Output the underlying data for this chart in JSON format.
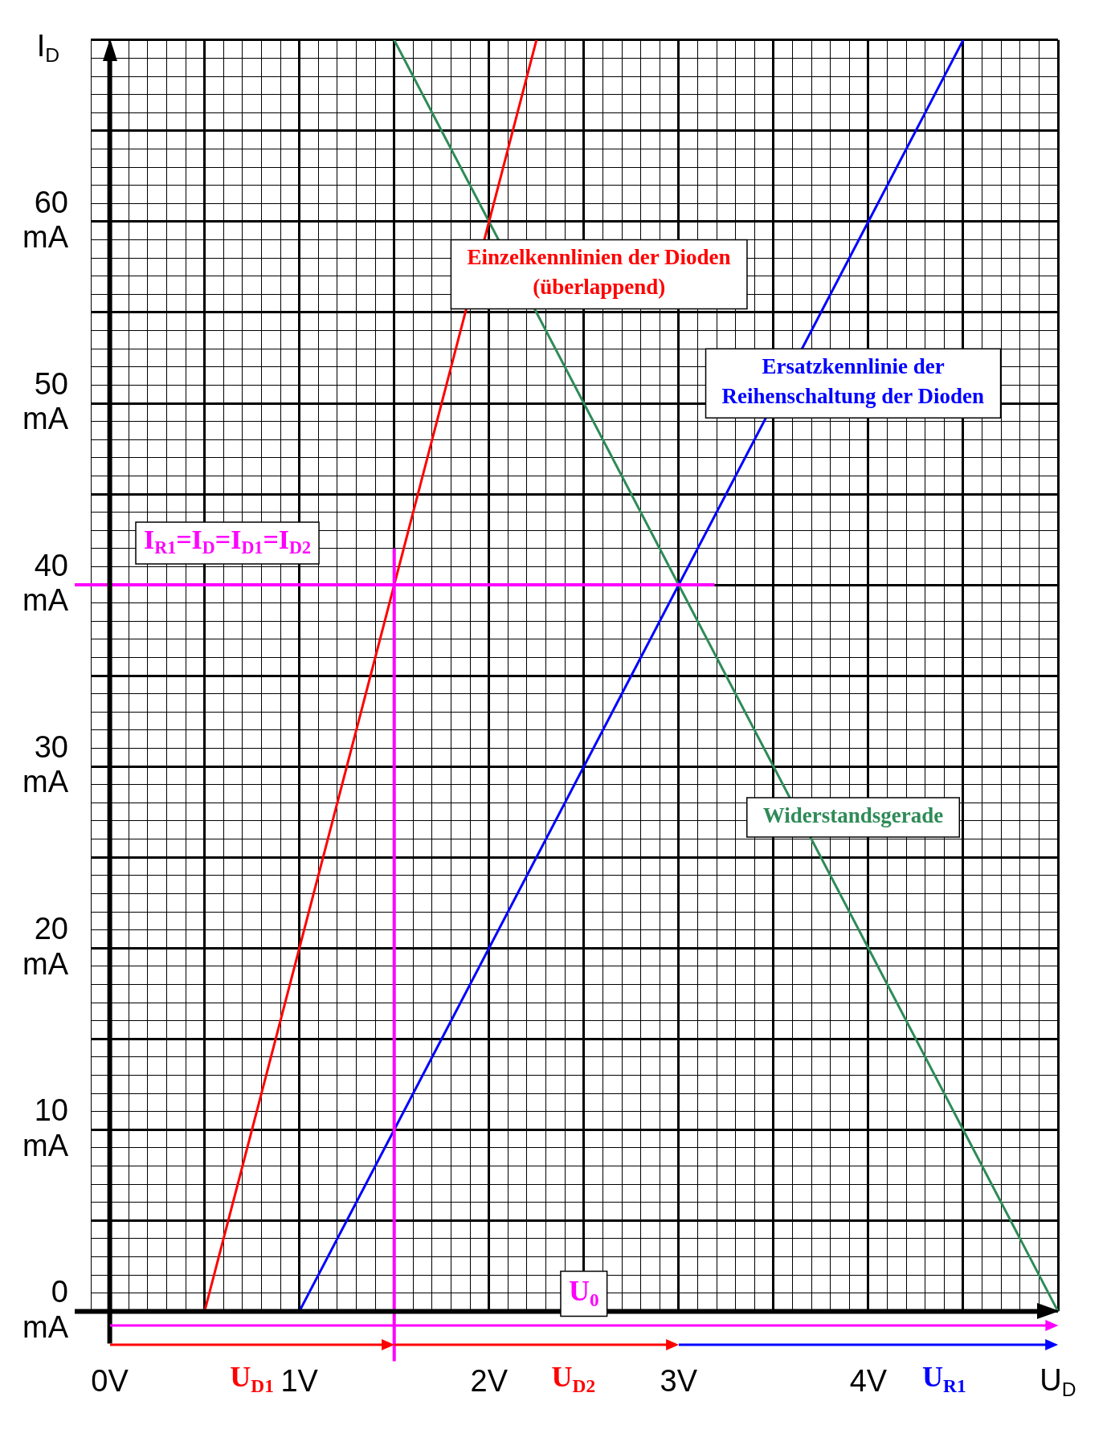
{
  "chart_data": {
    "type": "line",
    "xlabel": "U$_{D}$",
    "ylabel": "I$_{D}$",
    "xlim": [
      -0.1,
      5
    ],
    "ylim": [
      0,
      70
    ],
    "xticks": [
      {
        "value": -0.1,
        "label": null
      },
      {
        "value": 0,
        "label": "0V"
      },
      {
        "value": 0.1,
        "label": null
      },
      {
        "value": 0.2,
        "label": null
      },
      {
        "value": 0.3,
        "label": null
      },
      {
        "value": 0.4,
        "label": null
      },
      {
        "value": 0.5,
        "label": null
      },
      {
        "value": 0.6,
        "label": null
      },
      {
        "value": 0.7,
        "label": null
      },
      {
        "value": 0.8,
        "label": null
      },
      {
        "value": 0.9,
        "label": null
      },
      {
        "value": 1,
        "label": "1V"
      },
      {
        "value": 1.1,
        "label": null
      },
      {
        "value": 1.2,
        "label": null
      },
      {
        "value": 1.3,
        "label": null
      },
      {
        "value": 1.4,
        "label": null
      },
      {
        "value": 1.5,
        "label": null
      },
      {
        "value": 1.6,
        "label": null
      },
      {
        "value": 1.7,
        "label": null
      },
      {
        "value": 1.8,
        "label": null
      },
      {
        "value": 1.9,
        "label": null
      },
      {
        "value": 2,
        "label": "2V"
      },
      {
        "value": 2.1,
        "label": null
      },
      {
        "value": 2.2,
        "label": null
      },
      {
        "value": 2.3,
        "label": null
      },
      {
        "value": 2.4,
        "label": null
      },
      {
        "value": 2.5,
        "label": null
      },
      {
        "value": 2.6,
        "label": null
      },
      {
        "value": 2.7,
        "label": null
      },
      {
        "value": 2.8,
        "label": null
      },
      {
        "value": 2.9,
        "label": null
      },
      {
        "value": 3,
        "label": "3V"
      },
      {
        "value": 3.1,
        "label": null
      },
      {
        "value": 3.2,
        "label": null
      },
      {
        "value": 3.3,
        "label": null
      },
      {
        "value": 3.4,
        "label": null
      },
      {
        "value": 3.5,
        "label": null
      },
      {
        "value": 3.6,
        "label": null
      },
      {
        "value": 3.7,
        "label": null
      },
      {
        "value": 3.8,
        "label": null
      },
      {
        "value": 3.9,
        "label": null
      },
      {
        "value": 4,
        "label": "4V"
      },
      {
        "value": 4.1,
        "label": null
      },
      {
        "value": 4.2,
        "label": null
      },
      {
        "value": 4.3,
        "label": null
      },
      {
        "value": 4.4,
        "label": null
      },
      {
        "value": 4.5,
        "label": null
      },
      {
        "value": 4.6,
        "label": null
      },
      {
        "value": 4.7,
        "label": null
      },
      {
        "value": 4.8,
        "label": null
      },
      {
        "value": 4.9,
        "label": null
      },
      {
        "value": 5,
        "label": null
      }
    ],
    "yticks": [
      {
        "value": 0,
        "label": "0 mA"
      },
      {
        "value": 1,
        "label": null
      },
      {
        "value": 2,
        "label": null
      },
      {
        "value": 3,
        "label": null
      },
      {
        "value": 4,
        "label": null
      },
      {
        "value": 5,
        "label": null
      },
      {
        "value": 6,
        "label": null
      },
      {
        "value": 7,
        "label": null
      },
      {
        "value": 8,
        "label": null
      },
      {
        "value": 9,
        "label": null
      },
      {
        "value": 10,
        "label": "10 mA"
      },
      {
        "value": 11,
        "label": null
      },
      {
        "value": 12,
        "label": null
      },
      {
        "value": 13,
        "label": null
      },
      {
        "value": 14,
        "label": null
      },
      {
        "value": 15,
        "label": null
      },
      {
        "value": 16,
        "label": null
      },
      {
        "value": 17,
        "label": null
      },
      {
        "value": 18,
        "label": null
      },
      {
        "value": 19,
        "label": null
      },
      {
        "value": 20,
        "label": "20 mA"
      },
      {
        "value": 21,
        "label": null
      },
      {
        "value": 22,
        "label": null
      },
      {
        "value": 23,
        "label": null
      },
      {
        "value": 24,
        "label": null
      },
      {
        "value": 25,
        "label": null
      },
      {
        "value": 26,
        "label": null
      },
      {
        "value": 27,
        "label": null
      },
      {
        "value": 28,
        "label": null
      },
      {
        "value": 29,
        "label": null
      },
      {
        "value": 30,
        "label": "30 mA"
      },
      {
        "value": 31,
        "label": null
      },
      {
        "value": 32,
        "label": null
      },
      {
        "value": 33,
        "label": null
      },
      {
        "value": 34,
        "label": null
      },
      {
        "value": 35,
        "label": null
      },
      {
        "value": 36,
        "label": null
      },
      {
        "value": 37,
        "label": null
      },
      {
        "value": 38,
        "label": null
      },
      {
        "value": 39,
        "label": null
      },
      {
        "value": 40,
        "label": "40 mA"
      },
      {
        "value": 41,
        "label": null
      },
      {
        "value": 42,
        "label": null
      },
      {
        "value": 43,
        "label": null
      },
      {
        "value": 44,
        "label": null
      },
      {
        "value": 45,
        "label": null
      },
      {
        "value": 46,
        "label": null
      },
      {
        "value": 47,
        "label": null
      },
      {
        "value": 48,
        "label": null
      },
      {
        "value": 49,
        "label": null
      },
      {
        "value": 50,
        "label": "50 mA"
      },
      {
        "value": 51,
        "label": null
      },
      {
        "value": 52,
        "label": null
      },
      {
        "value": 53,
        "label": null
      },
      {
        "value": 54,
        "label": null
      },
      {
        "value": 55,
        "label": null
      },
      {
        "value": 56,
        "label": null
      },
      {
        "value": 57,
        "label": null
      },
      {
        "value": 58,
        "label": null
      },
      {
        "value": 59,
        "label": null
      },
      {
        "value": 60,
        "label": "60 mA"
      },
      {
        "value": 61,
        "label": null
      },
      {
        "value": 62,
        "label": null
      },
      {
        "value": 63,
        "label": null
      },
      {
        "value": 64,
        "label": null
      },
      {
        "value": 65,
        "label": null
      },
      {
        "value": 66,
        "label": null
      },
      {
        "value": 67,
        "label": null
      },
      {
        "value": 68,
        "label": null
      },
      {
        "value": 69,
        "label": null
      },
      {
        "value": 70,
        "label": null
      }
    ],
    "grid": true,
    "legend": false,
    "series": [
      {
        "name": "Einzelkennlinien der Dioden (überlappend)",
        "color": "#ff0000",
        "x": [
          0.5,
          2.25
        ],
        "values": [
          0,
          70
        ]
      },
      {
        "name": "Ersatzkennlinie der Reihenschaltung der Dioden",
        "color": "#0000ff",
        "x": [
          1,
          4.5
        ],
        "values": [
          0,
          70
        ]
      },
      {
        "name": "Widerstandsgerade",
        "color": "#2e8b57",
        "x": [
          1.5,
          5
        ],
        "values": [
          70,
          0
        ]
      }
    ],
    "ref_lines": [
      {
        "axis": "y",
        "value": 40,
        "label": "I$_{R1}$=I$_{D}$=I$_{D1}$=I$_{D2}$",
        "color": "#ff00ff"
      },
      {
        "axis": "x",
        "value": 1.5,
        "label": null,
        "color": "#ff00ff"
      }
    ],
    "annotations": [
      "U$_{0}$",
      "U$_{D1}$",
      "U$_{D2}$",
      "U$_{R1}$"
    ]
  }
}
